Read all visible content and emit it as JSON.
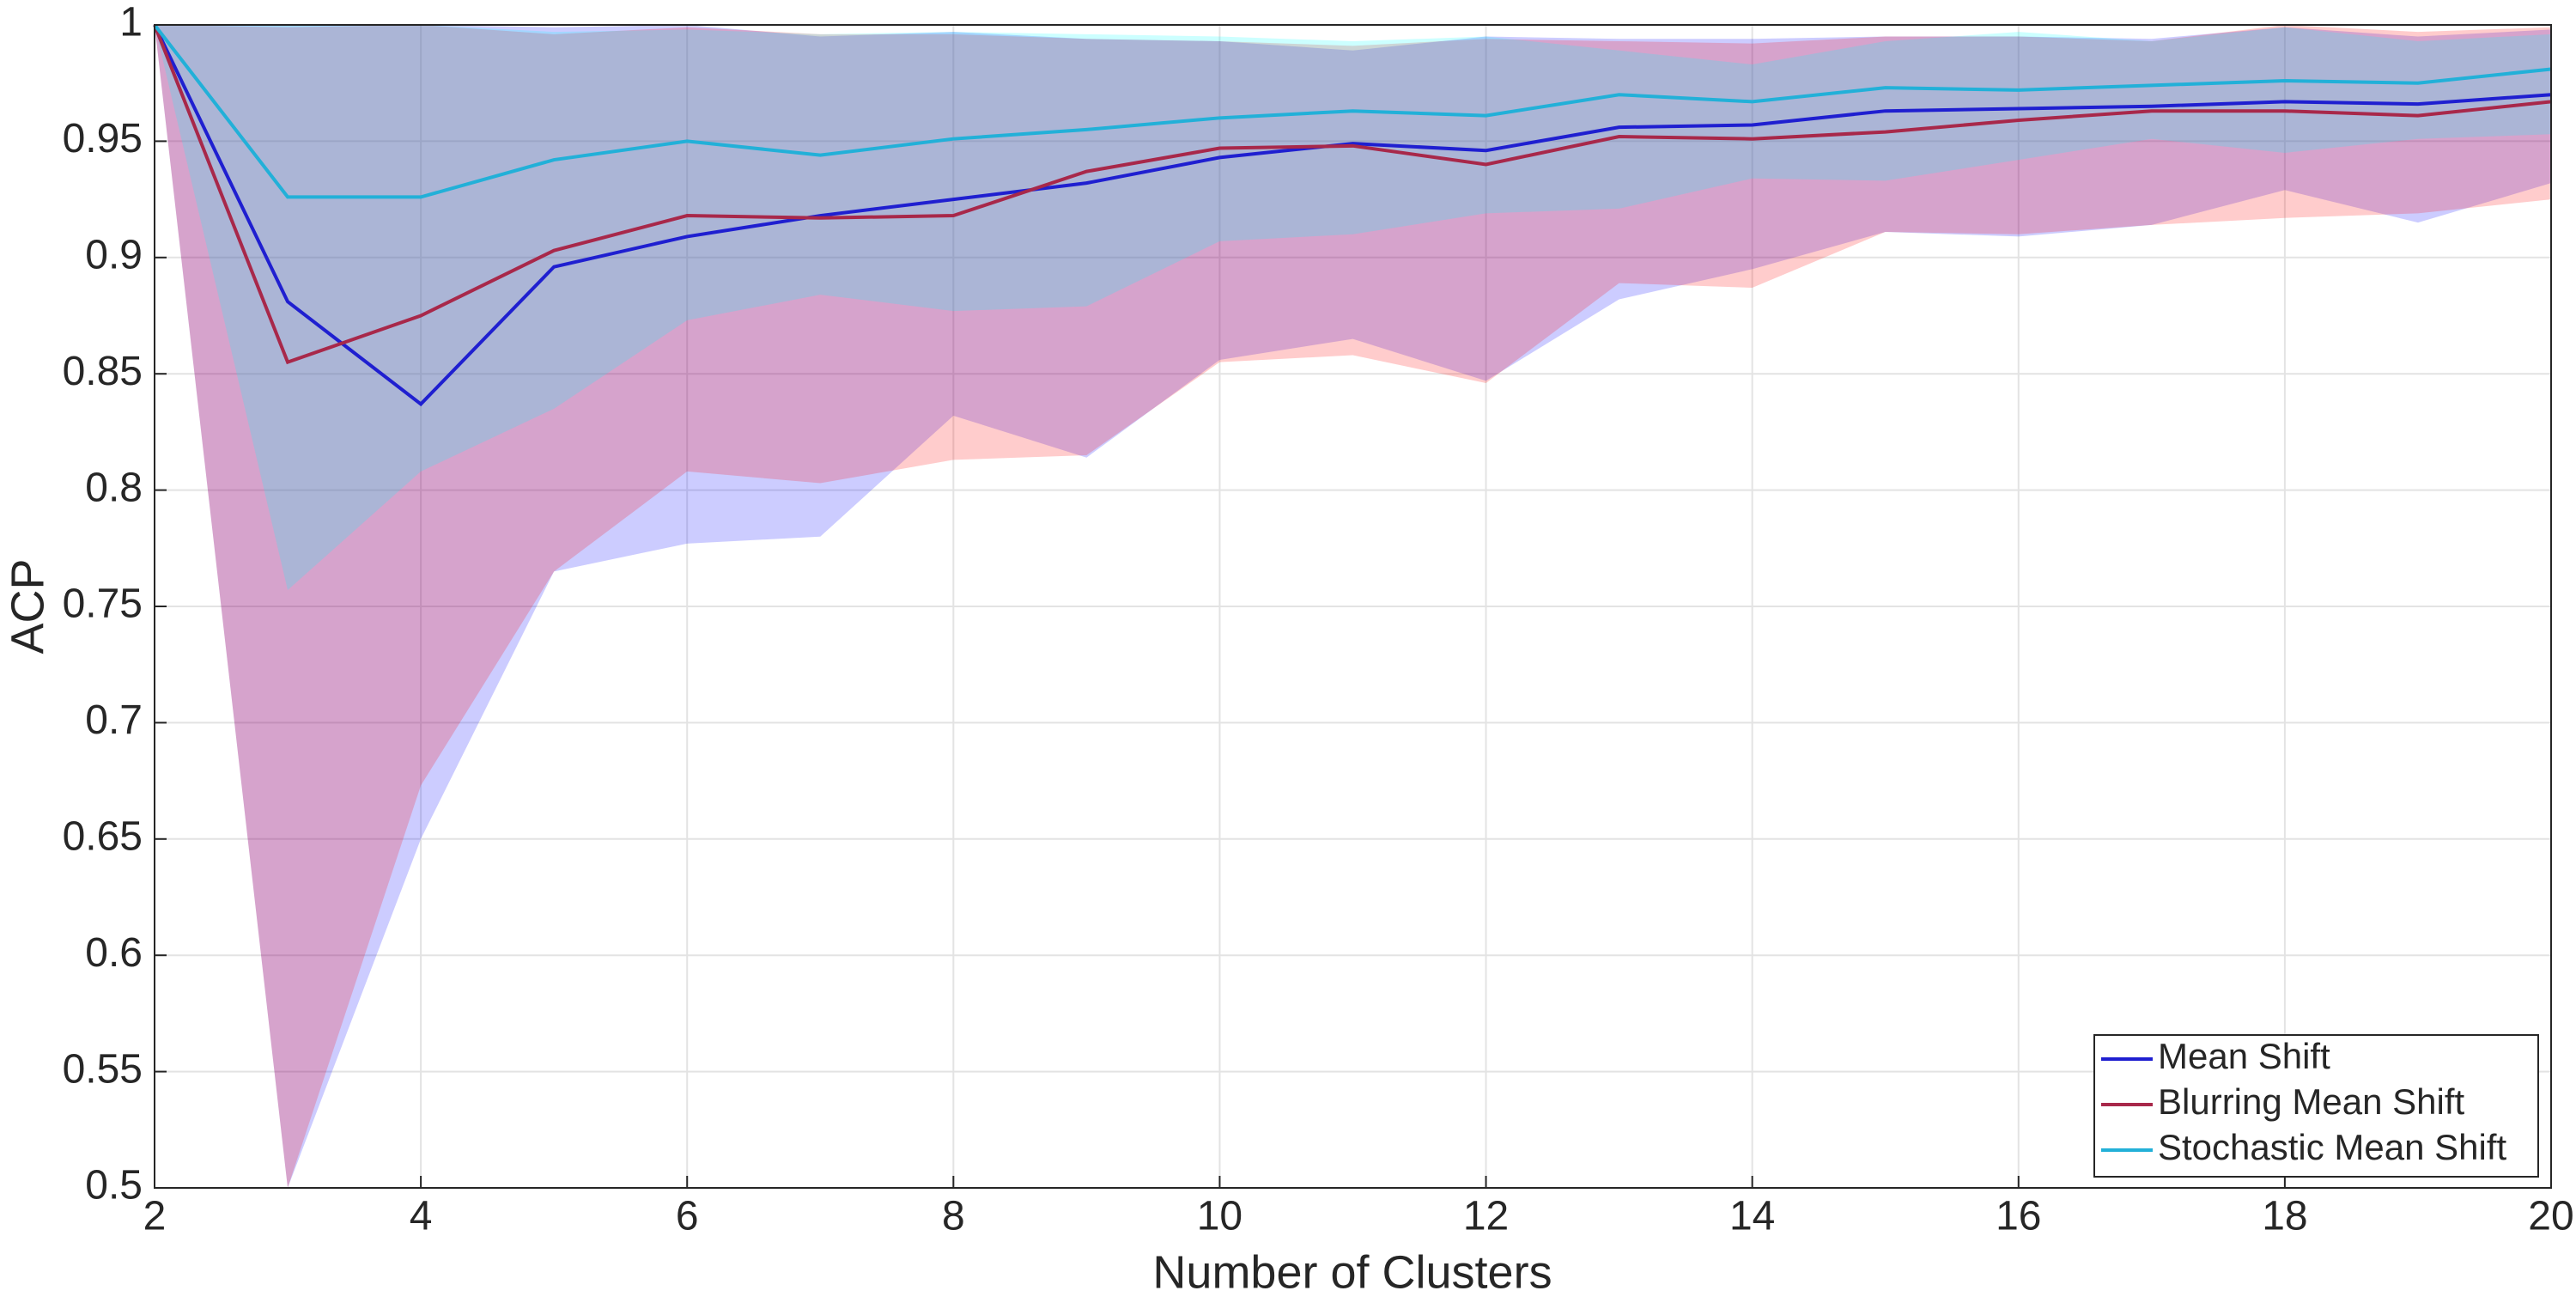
{
  "chart_data": {
    "type": "line",
    "xlabel": "Number of Clusters",
    "ylabel": "ACP",
    "x": [
      2,
      3,
      4,
      5,
      6,
      7,
      8,
      9,
      10,
      11,
      12,
      13,
      14,
      15,
      16,
      17,
      18,
      19,
      20
    ],
    "xlim": [
      2,
      20
    ],
    "xticks": [
      2,
      4,
      6,
      8,
      10,
      12,
      14,
      16,
      18,
      20
    ],
    "ylim": [
      0.5,
      1
    ],
    "yticks": [
      0.5,
      0.55,
      0.6,
      0.65,
      0.7,
      0.75,
      0.8,
      0.85,
      0.9,
      0.95,
      1
    ],
    "grid": true,
    "legend": "bottom-right",
    "series": [
      {
        "name": "Mean Shift",
        "color": "#1f1fd0",
        "band_color": "#0000ff",
        "values": [
          1,
          0.881,
          0.837,
          0.896,
          0.909,
          0.918,
          0.925,
          0.932,
          0.943,
          0.949,
          0.946,
          0.956,
          0.957,
          0.963,
          0.964,
          0.965,
          0.967,
          0.966,
          0.97
        ],
        "lower": [
          1,
          0.5,
          0.65,
          0.765,
          0.777,
          0.78,
          0.832,
          0.814,
          0.856,
          0.865,
          0.847,
          0.882,
          0.895,
          0.911,
          0.909,
          0.914,
          0.929,
          0.915,
          0.932
        ],
        "upper": [
          1,
          1,
          1,
          0.999,
          1,
          0.995,
          0.997,
          0.994,
          0.993,
          0.989,
          0.995,
          0.994,
          0.994,
          0.995,
          0.995,
          0.994,
          0.999,
          0.995,
          0.998
        ]
      },
      {
        "name": "Blurring Mean Shift",
        "color": "#a8284a",
        "band_color": "#ff0000",
        "values": [
          1,
          0.855,
          0.875,
          0.903,
          0.918,
          0.917,
          0.918,
          0.937,
          0.947,
          0.948,
          0.94,
          0.952,
          0.951,
          0.954,
          0.959,
          0.963,
          0.963,
          0.961,
          0.967
        ],
        "lower": [
          1,
          0.5,
          0.673,
          0.765,
          0.808,
          0.803,
          0.813,
          0.815,
          0.855,
          0.858,
          0.846,
          0.889,
          0.887,
          0.911,
          0.91,
          0.914,
          0.917,
          0.919,
          0.925
        ],
        "upper": [
          1,
          0.999,
          1,
          0.996,
          0.999,
          0.996,
          0.996,
          0.994,
          0.993,
          0.991,
          0.994,
          0.993,
          0.992,
          0.995,
          0.995,
          0.993,
          1,
          0.997,
          0.999
        ]
      },
      {
        "name": "Stochastic Mean Shift",
        "color": "#22b0d8",
        "band_color": "#00ffff",
        "values": [
          1,
          0.926,
          0.926,
          0.942,
          0.95,
          0.944,
          0.951,
          0.955,
          0.96,
          0.963,
          0.961,
          0.97,
          0.967,
          0.973,
          0.972,
          0.974,
          0.976,
          0.975,
          0.981
        ],
        "lower": [
          1,
          0.757,
          0.808,
          0.835,
          0.873,
          0.884,
          0.877,
          0.879,
          0.907,
          0.91,
          0.919,
          0.921,
          0.934,
          0.933,
          0.942,
          0.951,
          0.945,
          0.951,
          0.953
        ],
        "upper": [
          1,
          1,
          1,
          0.997,
          0.998,
          0.996,
          0.997,
          0.996,
          0.995,
          0.993,
          0.995,
          0.989,
          0.983,
          0.993,
          0.997,
          0.993,
          0.999,
          0.993,
          0.996
        ]
      }
    ]
  }
}
